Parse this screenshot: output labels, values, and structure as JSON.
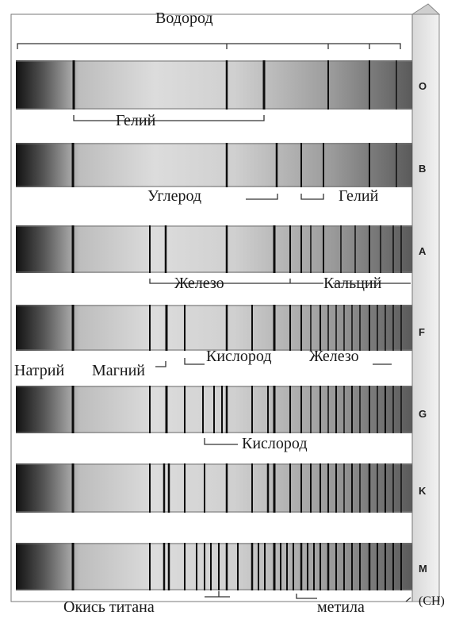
{
  "labels": {
    "hydrogen": "Водород",
    "helium_o": "Гелий",
    "carbon": "Углерод",
    "helium_b": "Гелий",
    "iron_a": "Железо",
    "calcium": "Кальций",
    "oxygen_f": "Кислород",
    "iron_f": "Железо",
    "sodium": "Натрий",
    "magnesium": "Магний",
    "oxygen_g": "Кислород",
    "titanium_oxide": "Окись титана",
    "methyl": "метила",
    "ch": "(CH)"
  },
  "classes": [
    "O",
    "B",
    "A",
    "F",
    "G",
    "K",
    "M"
  ]
}
